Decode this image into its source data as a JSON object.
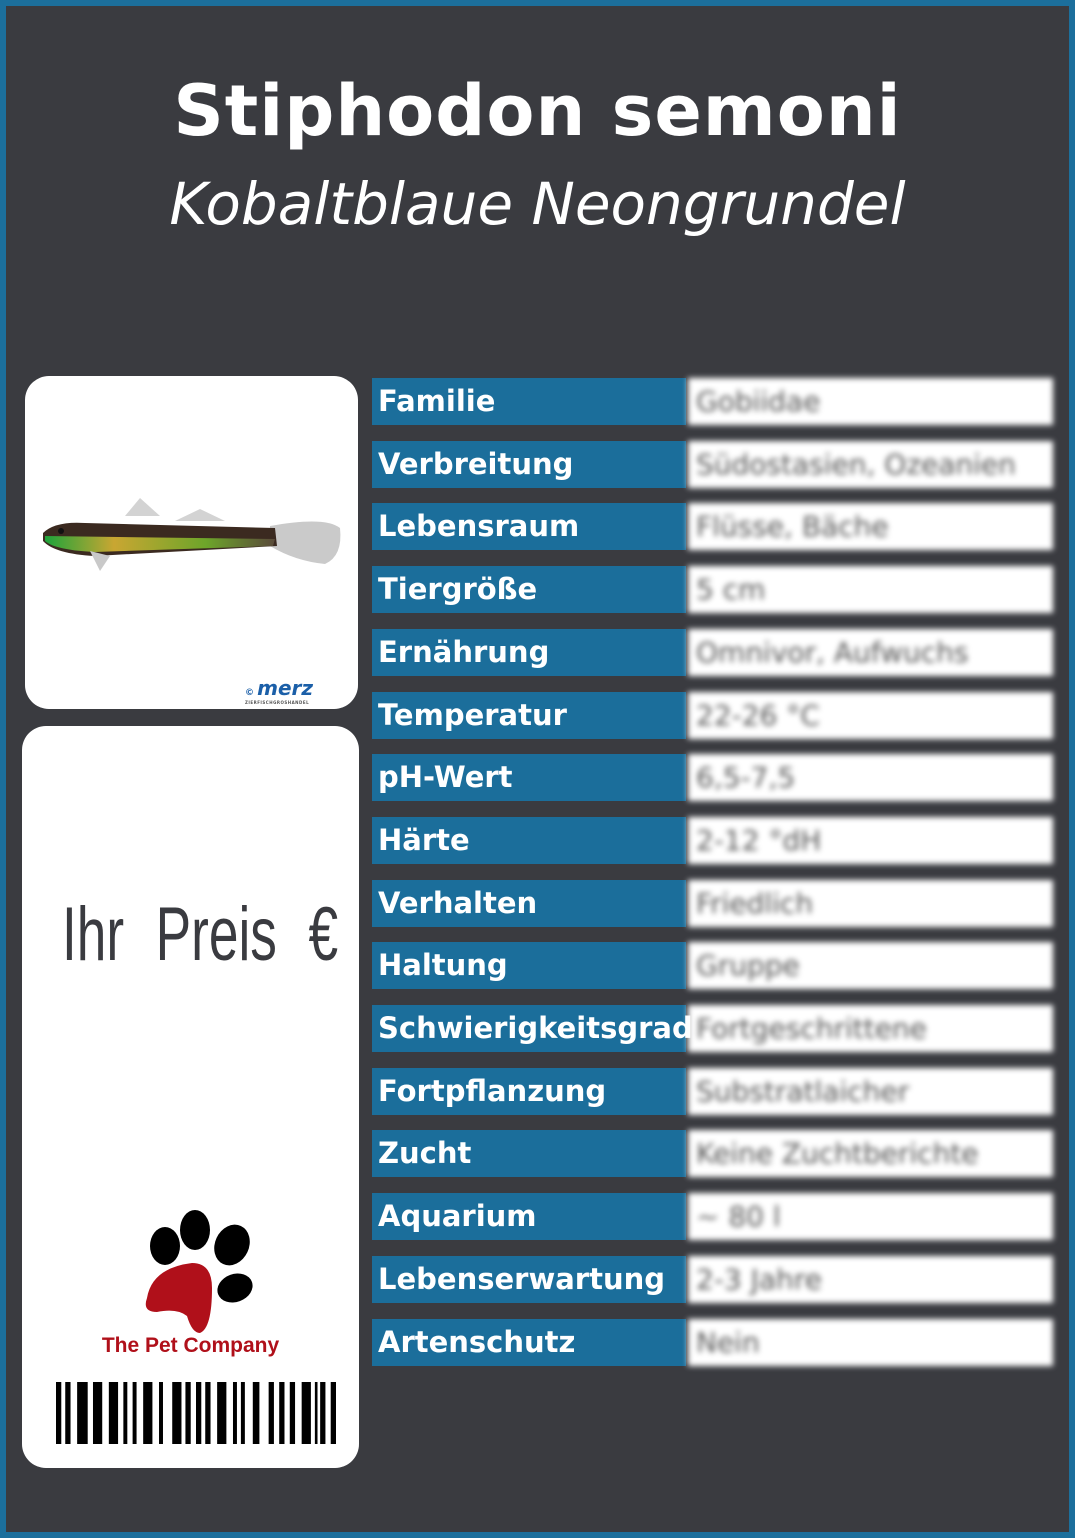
{
  "header": {
    "title": "Stiphodon semoni",
    "subtitle": "Kobaltblaue Neongrundel"
  },
  "image_card": {
    "copyright": "©",
    "photo_credit_logo": "merz",
    "photo_credit_sub": "ZIERFISCHGROSHANDEL"
  },
  "price_card": {
    "price_label": "Ihr Preis €",
    "brand": "The Pet Company",
    "brand_color": "#b0101a"
  },
  "colors": {
    "background": "#3a3b40",
    "accent": "#1b6e9b"
  },
  "attributes": [
    {
      "label": "Familie",
      "value": "Gobiidae"
    },
    {
      "label": "Verbreitung",
      "value": "Südostasien, Ozeanien"
    },
    {
      "label": "Lebensraum",
      "value": "Flüsse, Bäche"
    },
    {
      "label": "Tiergröße",
      "value": "5 cm"
    },
    {
      "label": "Ernährung",
      "value": "Omnivor, Aufwuchs"
    },
    {
      "label": "Temperatur",
      "value": "22-26 °C"
    },
    {
      "label": "pH-Wert",
      "value": "6,5-7,5"
    },
    {
      "label": "Härte",
      "value": "2-12 °dH"
    },
    {
      "label": "Verhalten",
      "value": "Friedlich"
    },
    {
      "label": "Haltung",
      "value": "Gruppe"
    },
    {
      "label": "Schwierigkeitsgrad",
      "value": "Fortgeschrittene"
    },
    {
      "label": "Fortpflanzung",
      "value": "Substratlaicher"
    },
    {
      "label": "Zucht",
      "value": "Keine Zuchtberichte"
    },
    {
      "label": "Aquarium",
      "value": "~ 80 l"
    },
    {
      "label": "Lebenserwartung",
      "value": "2-3 Jahre"
    },
    {
      "label": "Artenschutz",
      "value": "Nein"
    }
  ]
}
